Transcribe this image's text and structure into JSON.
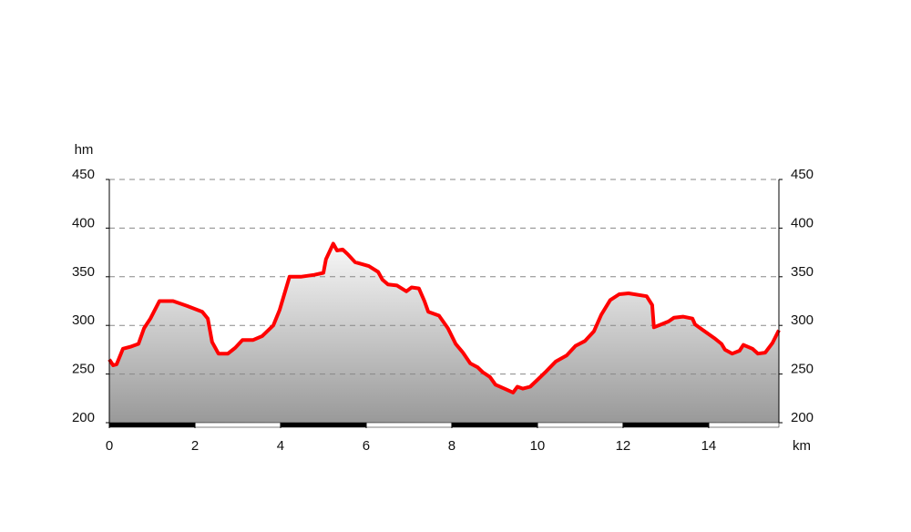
{
  "chart_data": {
    "type": "line",
    "y_unit": "hm",
    "x_unit": "km",
    "x": [
      0,
      0.09,
      0.17,
      0.32,
      0.49,
      0.68,
      0.81,
      0.96,
      1.17,
      1.49,
      1.81,
      2.17,
      2.3,
      2.4,
      2.55,
      2.77,
      2.94,
      3.11,
      3.36,
      3.57,
      3.83,
      3.98,
      4.21,
      4.47,
      4.79,
      5.0,
      5.06,
      5.23,
      5.32,
      5.45,
      5.57,
      5.74,
      6.06,
      6.28,
      6.38,
      6.51,
      6.72,
      6.94,
      7.06,
      7.23,
      7.36,
      7.45,
      7.7,
      7.91,
      8.09,
      8.26,
      8.43,
      8.6,
      8.72,
      8.89,
      9.02,
      9.28,
      9.43,
      9.53,
      9.66,
      9.83,
      10.0,
      10.21,
      10.43,
      10.68,
      10.89,
      11.11,
      11.32,
      11.49,
      11.7,
      11.91,
      12.13,
      12.55,
      12.68,
      12.72,
      12.89,
      13.06,
      13.19,
      13.4,
      13.62,
      13.68,
      13.87,
      14.13,
      14.3,
      14.38,
      14.55,
      14.72,
      14.81,
      15.02,
      15.15,
      15.32,
      15.49,
      15.64
    ],
    "values": [
      265,
      259,
      260,
      276,
      278,
      281,
      297,
      307,
      325,
      325,
      320,
      314,
      307,
      283,
      271,
      271,
      277,
      285,
      285,
      289,
      300,
      316,
      350,
      350,
      352,
      354,
      368,
      384,
      377,
      378,
      373,
      365,
      361,
      355,
      347,
      342,
      341,
      335,
      339,
      338,
      325,
      314,
      310,
      297,
      281,
      272,
      261,
      257,
      252,
      247,
      239,
      234,
      231,
      237,
      235,
      237,
      244,
      253,
      263,
      269,
      279,
      284,
      294,
      311,
      326,
      332,
      333,
      330,
      321,
      298,
      301,
      304,
      308,
      309,
      307,
      301,
      295,
      287,
      281,
      275,
      271,
      274,
      280,
      276,
      271,
      272,
      282,
      295
    ],
    "color": "#ff0000",
    "xlim": [
      0,
      15.64
    ],
    "xticks": [
      0,
      2,
      4,
      6,
      8,
      10,
      12,
      14
    ],
    "ylim": [
      200,
      450
    ],
    "yticks": [
      200,
      250,
      300,
      350,
      400,
      450
    ],
    "y2lim": [
      200,
      450
    ],
    "y2ticks": [
      200,
      250,
      300,
      350,
      400,
      450
    ],
    "grid": true
  }
}
